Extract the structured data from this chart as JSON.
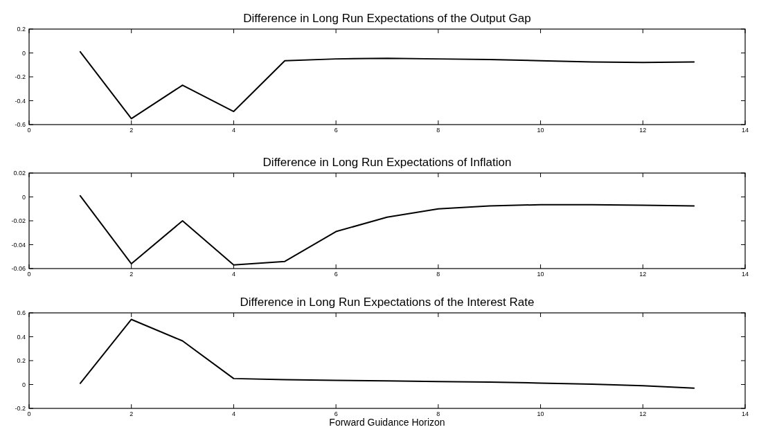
{
  "chart_data": [
    {
      "type": "line",
      "title": "Difference in Long Run Expectations of the Output Gap",
      "x": [
        1,
        2,
        3,
        4,
        5,
        6,
        7,
        8,
        9,
        10,
        11,
        12,
        13
      ],
      "series": [
        {
          "color": "#000000",
          "values": [
            0.01,
            -0.55,
            -0.27,
            -0.49,
            -0.065,
            -0.05,
            -0.045,
            -0.05,
            -0.055,
            -0.065,
            -0.075,
            -0.08,
            -0.075
          ]
        }
      ],
      "xlim": [
        0,
        14
      ],
      "xticks": [
        0,
        2,
        4,
        6,
        8,
        10,
        12,
        14
      ],
      "ylim": [
        -0.6,
        0.2
      ],
      "yticks": [
        -0.6,
        -0.4,
        -0.2,
        0,
        0.2
      ],
      "grid": false,
      "marker": "none",
      "line_style": "solid"
    },
    {
      "type": "line",
      "title": "Difference in Long Run Expectations of Inflation",
      "x": [
        1,
        2,
        3,
        4,
        5,
        6,
        7,
        8,
        9,
        10,
        11,
        12,
        13
      ],
      "series": [
        {
          "color": "#000000",
          "values": [
            0.001,
            -0.056,
            -0.02,
            -0.057,
            -0.054,
            -0.029,
            -0.017,
            -0.01,
            -0.0075,
            -0.0065,
            -0.0065,
            -0.007,
            -0.0075
          ]
        }
      ],
      "xlim": [
        0,
        14
      ],
      "xticks": [
        0,
        2,
        4,
        6,
        8,
        10,
        12,
        14
      ],
      "ylim": [
        -0.06,
        0.02
      ],
      "yticks": [
        -0.06,
        -0.04,
        -0.02,
        0,
        0.02
      ],
      "grid": false,
      "marker": "none",
      "line_style": "solid"
    },
    {
      "type": "line",
      "title": "Difference in Long Run Expectations of the Interest Rate",
      "xlabel": "Forward Guidance Horizon",
      "x": [
        1,
        2,
        3,
        4,
        5,
        6,
        7,
        8,
        9,
        10,
        11,
        12,
        13
      ],
      "series": [
        {
          "color": "#000000",
          "values": [
            0.01,
            0.545,
            0.365,
            0.05,
            0.04,
            0.035,
            0.03,
            0.025,
            0.02,
            0.012,
            0.003,
            -0.01,
            -0.03
          ]
        }
      ],
      "xlim": [
        0,
        14
      ],
      "xticks": [
        0,
        2,
        4,
        6,
        8,
        10,
        12,
        14
      ],
      "ylim": [
        -0.2,
        0.6
      ],
      "yticks": [
        -0.2,
        0,
        0.2,
        0.4,
        0.6
      ],
      "grid": false,
      "marker": "none",
      "line_style": "solid"
    }
  ]
}
